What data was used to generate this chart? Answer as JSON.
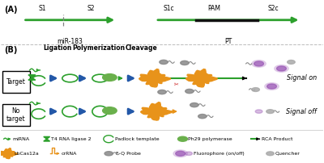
{
  "bg_color": "#ffffff",
  "green_color": "#2ca02c",
  "orange_color": "#e8931a",
  "blue_color": "#2358a8",
  "gray_color": "#888888",
  "purple_color": "#9b59b6",
  "red_color": "#cc2222",
  "black_color": "#222222",
  "light_green_color": "#6ab04c",
  "signal_on": "Signal on",
  "signal_off": "Signal off",
  "ligation_label": "Ligation",
  "polymerization_label": "Polymerization",
  "cleavage_label": "Cleavage",
  "target_label": "Target",
  "no_target_label": "No\ntarget",
  "panel_a_label": "(A)",
  "panel_b_label": "(B)",
  "mir183_label": "miR-183",
  "pt_label": "PT",
  "s1_label": "S1",
  "s2_label": "S2",
  "s1c_label": "S1c",
  "pam_label": "PAM",
  "s2c_label": "S2c",
  "legend_row1": [
    "miRNA",
    "T4 RNA ligase 2",
    "Padlock template",
    "Ph29 polymerase",
    "RCA Product"
  ],
  "legend_row2": [
    "LbCas12a",
    "crRNA",
    "F-Q Probe",
    "Fluorophore (on/off)",
    "Quencher"
  ]
}
